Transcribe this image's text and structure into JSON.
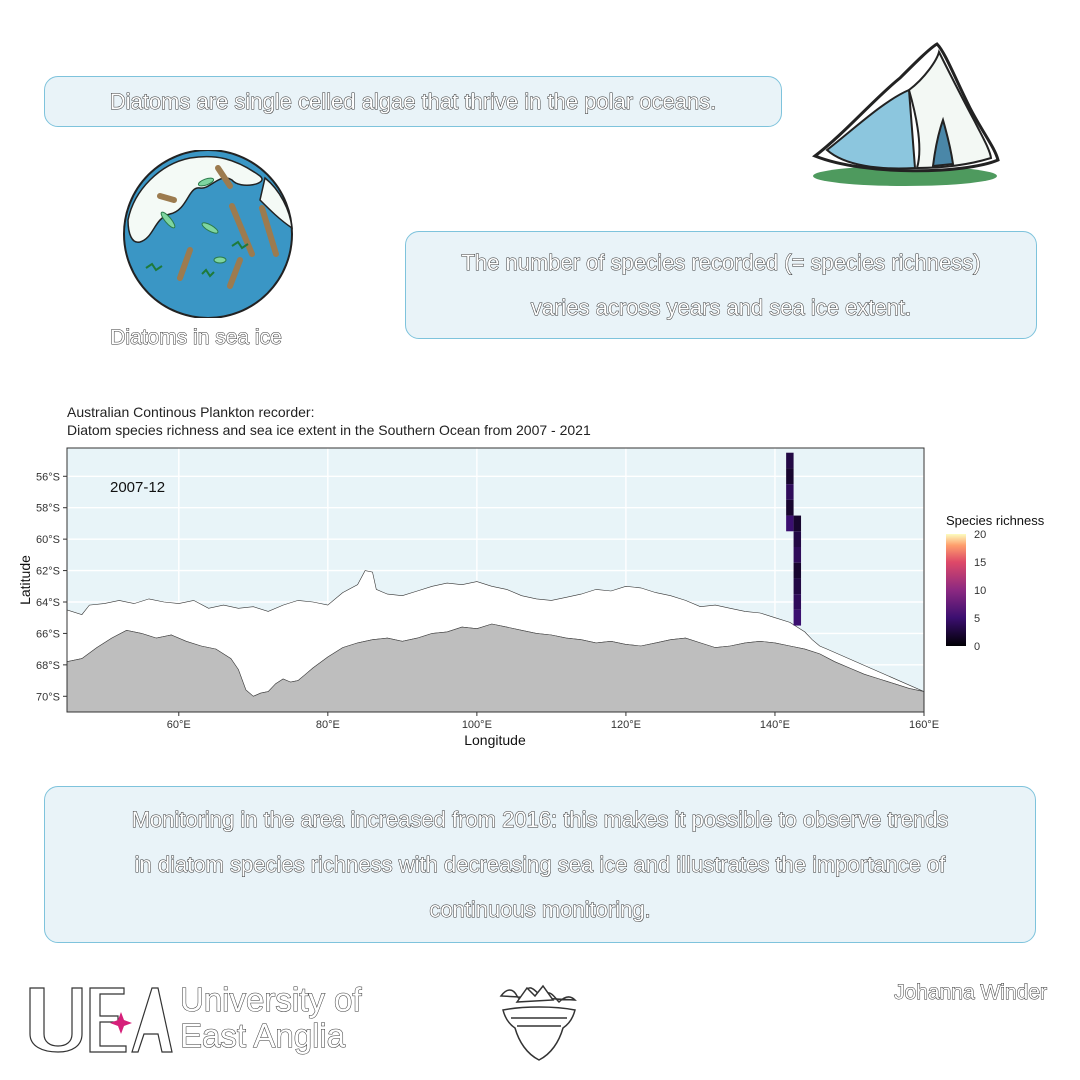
{
  "intro_text": "Diatoms are single celled algae that thrive in the polar oceans.",
  "diatom_label": "Diatoms in sea ice",
  "richness_text": {
    "line1": "The number of species recorded (= species richness)",
    "line2": "varies across years and sea ice extent."
  },
  "monitoring_text": {
    "line1": "Monitoring in the area increased from 2016: this makes it possible to observe trends",
    "line2": "in diatom species richness with decreasing sea ice and illustrates the importance of",
    "line3": "continuous monitoring."
  },
  "colors": {
    "ocean": "#e8f4f8",
    "sea_ice": "#ffffff",
    "land": "#bebebe",
    "box_fill": "#e9f3f8",
    "box_border": "#7ec3dc"
  },
  "chart_data": {
    "type": "heatmap",
    "title_line1": "Australian Continous Plankton recorder:",
    "title_line2": "Diatom species richness and sea ice extent in the Southern Ocean from 2007 - 2021",
    "frame_label": "2007-12",
    "xlabel": "Longitude",
    "ylabel": "Latitude",
    "xlim": [
      45,
      160
    ],
    "ylim": [
      -71,
      -54.2
    ],
    "x_ticks": [
      60,
      80,
      100,
      120,
      140,
      160
    ],
    "x_tick_labels": [
      "60°E",
      "80°E",
      "100°E",
      "120°E",
      "140°E",
      "160°E"
    ],
    "y_ticks": [
      -56,
      -58,
      -60,
      -62,
      -64,
      -66,
      -68,
      -70
    ],
    "y_tick_labels": [
      "56°S",
      "58°S",
      "60°S",
      "62°S",
      "64°S",
      "66°S",
      "68°S",
      "70°S"
    ],
    "grid": true,
    "legend": {
      "title": "Species richness",
      "position": "right",
      "range": [
        0,
        20
      ],
      "ticks": [
        0,
        5,
        10,
        15,
        20
      ],
      "tick_labels": [
        "0",
        "5",
        "10",
        "15",
        "20"
      ]
    },
    "cells": [
      {
        "lon": 142,
        "lat": -55,
        "richness": 3
      },
      {
        "lon": 142,
        "lat": -56,
        "richness": 2
      },
      {
        "lon": 142,
        "lat": -57,
        "richness": 4
      },
      {
        "lon": 142,
        "lat": -58,
        "richness": 2
      },
      {
        "lon": 142,
        "lat": -59,
        "richness": 5
      },
      {
        "lon": 143,
        "lat": -59,
        "richness": 2
      },
      {
        "lon": 143,
        "lat": -60,
        "richness": 3
      },
      {
        "lon": 143,
        "lat": -61,
        "richness": 4
      },
      {
        "lon": 143,
        "lat": -62,
        "richness": 2
      },
      {
        "lon": 143,
        "lat": -63,
        "richness": 3
      },
      {
        "lon": 143,
        "lat": -64,
        "richness": 4
      },
      {
        "lon": 143,
        "lat": -65,
        "richness": 5
      }
    ],
    "ice_edge": [
      [
        45,
        -64.5
      ],
      [
        47,
        -64.8
      ],
      [
        48,
        -64.2
      ],
      [
        50,
        -64.1
      ],
      [
        52,
        -63.9
      ],
      [
        54,
        -64.1
      ],
      [
        56,
        -63.8
      ],
      [
        58,
        -64.0
      ],
      [
        60,
        -64.1
      ],
      [
        62,
        -63.9
      ],
      [
        64,
        -64.4
      ],
      [
        66,
        -64.2
      ],
      [
        68,
        -64.4
      ],
      [
        70,
        -64.3
      ],
      [
        72,
        -64.6
      ],
      [
        74,
        -64.2
      ],
      [
        76,
        -63.9
      ],
      [
        78,
        -64.0
      ],
      [
        80,
        -64.2
      ],
      [
        82,
        -63.4
      ],
      [
        84,
        -62.9
      ],
      [
        85,
        -62.0
      ],
      [
        86,
        -62.1
      ],
      [
        86.5,
        -63.2
      ],
      [
        88,
        -63.5
      ],
      [
        90,
        -63.6
      ],
      [
        92,
        -63.3
      ],
      [
        94,
        -63.0
      ],
      [
        96,
        -62.8
      ],
      [
        98,
        -62.9
      ],
      [
        100,
        -62.7
      ],
      [
        102,
        -63.0
      ],
      [
        104,
        -63.2
      ],
      [
        106,
        -63.6
      ],
      [
        108,
        -63.8
      ],
      [
        110,
        -63.9
      ],
      [
        112,
        -63.7
      ],
      [
        114,
        -63.5
      ],
      [
        116,
        -63.2
      ],
      [
        118,
        -63.3
      ],
      [
        120,
        -63.0
      ],
      [
        122,
        -63.1
      ],
      [
        124,
        -63.4
      ],
      [
        126,
        -63.6
      ],
      [
        128,
        -63.9
      ],
      [
        130,
        -64.3
      ],
      [
        132,
        -64.2
      ],
      [
        134,
        -64.4
      ],
      [
        136,
        -64.6
      ],
      [
        138,
        -64.7
      ],
      [
        140,
        -65.0
      ],
      [
        142,
        -65.3
      ],
      [
        143,
        -65.6
      ],
      [
        144,
        -65.9
      ],
      [
        145,
        -66.4
      ],
      [
        146,
        -66.8
      ],
      [
        147,
        -67.0
      ]
    ],
    "coast": [
      [
        45,
        -67.8
      ],
      [
        47,
        -67.6
      ],
      [
        49,
        -66.9
      ],
      [
        51,
        -66.3
      ],
      [
        53,
        -65.8
      ],
      [
        55,
        -66.0
      ],
      [
        57,
        -66.3
      ],
      [
        59,
        -66.1
      ],
      [
        61,
        -66.5
      ],
      [
        63,
        -66.8
      ],
      [
        65,
        -67.0
      ],
      [
        67,
        -67.6
      ],
      [
        68,
        -68.3
      ],
      [
        69,
        -69.6
      ],
      [
        70,
        -70.0
      ],
      [
        71,
        -69.8
      ],
      [
        72,
        -69.7
      ],
      [
        73,
        -69.2
      ],
      [
        74,
        -68.9
      ],
      [
        75,
        -69.1
      ],
      [
        76,
        -69.0
      ],
      [
        77,
        -68.6
      ],
      [
        78,
        -68.2
      ],
      [
        80,
        -67.5
      ],
      [
        82,
        -66.9
      ],
      [
        84,
        -66.6
      ],
      [
        86,
        -66.4
      ],
      [
        88,
        -66.3
      ],
      [
        90,
        -66.5
      ],
      [
        92,
        -66.3
      ],
      [
        94,
        -66.0
      ],
      [
        96,
        -65.9
      ],
      [
        98,
        -65.6
      ],
      [
        100,
        -65.7
      ],
      [
        102,
        -65.4
      ],
      [
        104,
        -65.6
      ],
      [
        106,
        -65.8
      ],
      [
        108,
        -66.0
      ],
      [
        110,
        -66.1
      ],
      [
        112,
        -66.3
      ],
      [
        114,
        -66.4
      ],
      [
        116,
        -66.6
      ],
      [
        118,
        -66.5
      ],
      [
        120,
        -66.7
      ],
      [
        122,
        -66.8
      ],
      [
        124,
        -66.6
      ],
      [
        126,
        -66.4
      ],
      [
        128,
        -66.3
      ],
      [
        130,
        -66.6
      ],
      [
        132,
        -66.9
      ],
      [
        134,
        -66.8
      ],
      [
        136,
        -66.6
      ],
      [
        138,
        -66.5
      ],
      [
        140,
        -66.6
      ],
      [
        142,
        -66.8
      ],
      [
        144,
        -67.0
      ],
      [
        146,
        -67.3
      ],
      [
        148,
        -67.8
      ],
      [
        150,
        -68.2
      ],
      [
        152,
        -68.6
      ],
      [
        154,
        -68.9
      ],
      [
        156,
        -69.2
      ],
      [
        158,
        -69.5
      ],
      [
        160,
        -69.7
      ]
    ]
  }
}
